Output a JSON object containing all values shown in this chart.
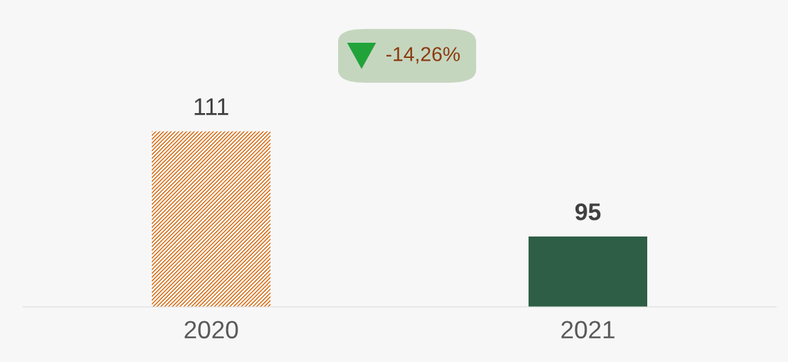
{
  "chart_data": {
    "type": "bar",
    "categories": [
      "2020",
      "2021"
    ],
    "values": [
      111,
      95
    ],
    "colors": [
      "#d35f00",
      "#2e5e45"
    ],
    "ylim": [
      84.3,
      131
    ],
    "tick_labels": "x",
    "data_labels": true,
    "grid": false,
    "legend": false,
    "annotations": [
      "-14,26%"
    ]
  }
}
